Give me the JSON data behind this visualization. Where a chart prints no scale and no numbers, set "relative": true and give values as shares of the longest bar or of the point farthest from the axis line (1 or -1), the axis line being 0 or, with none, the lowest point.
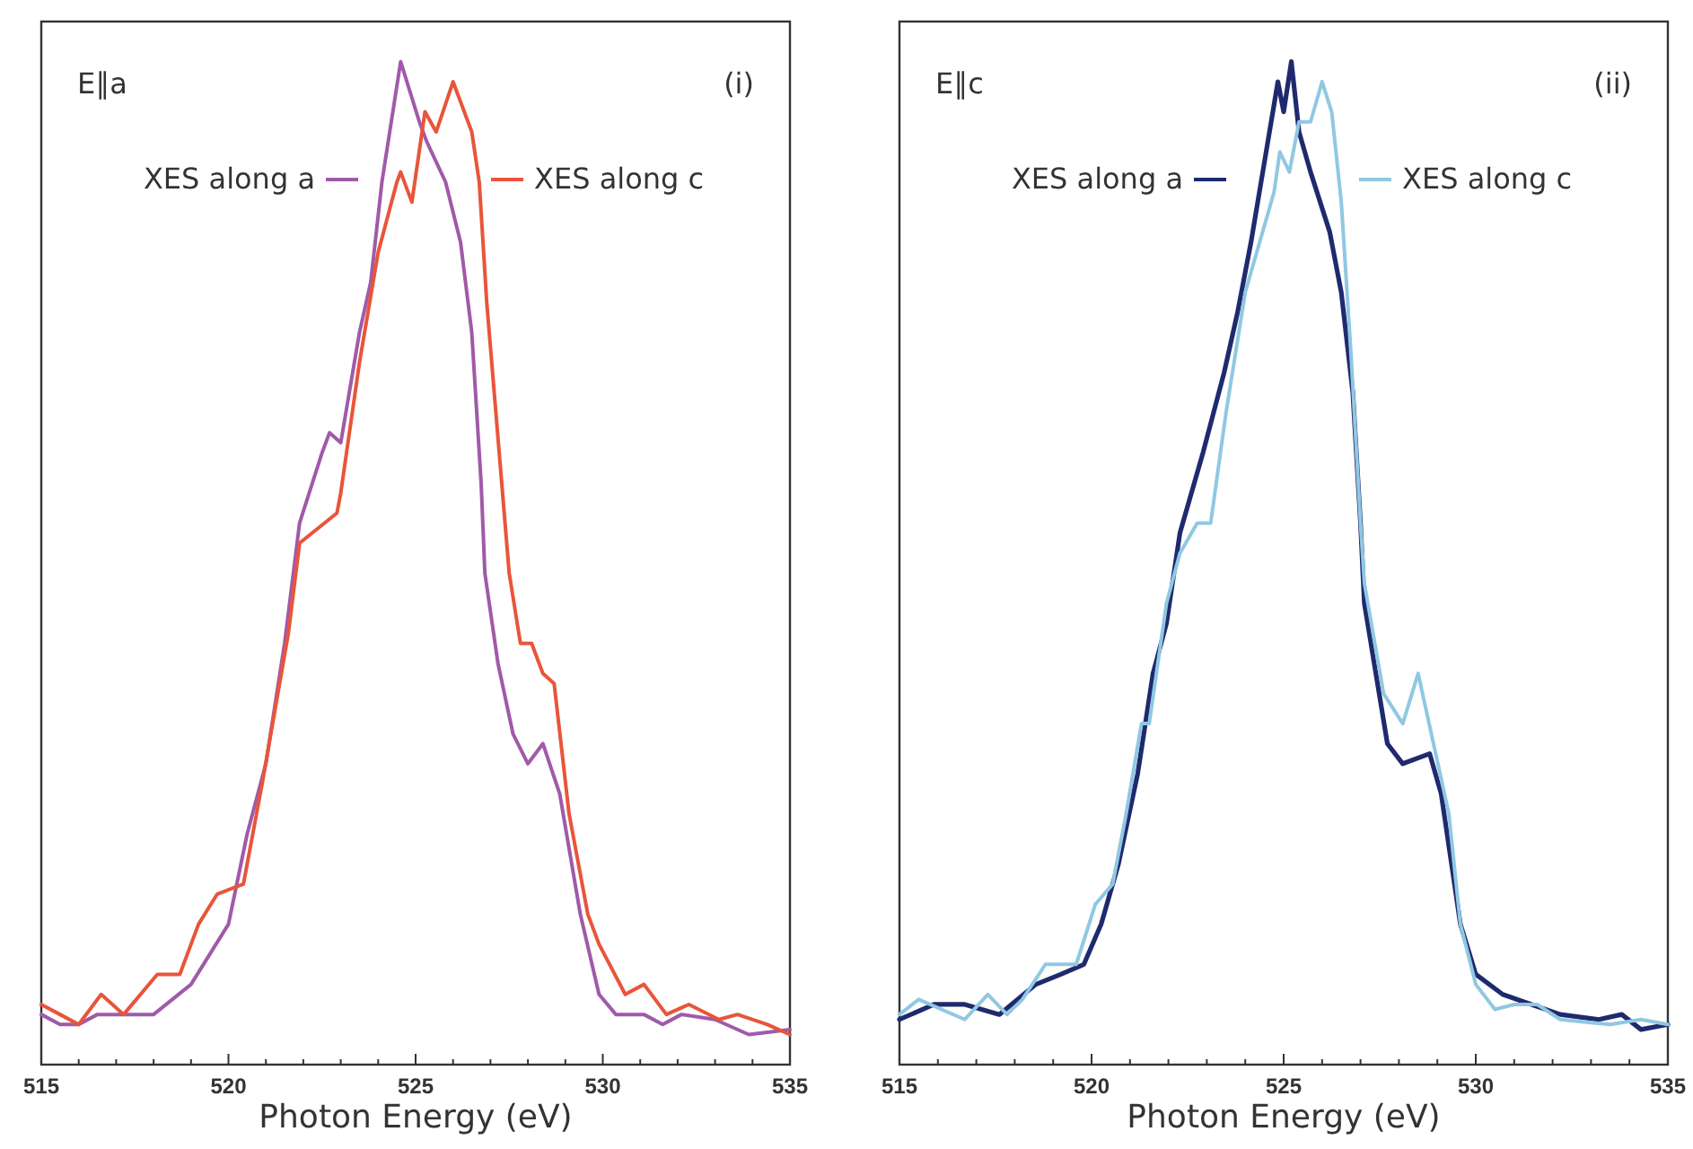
{
  "chart_data": [
    {
      "type": "line",
      "title": "E∥a",
      "annotations": [
        "(i)"
      ],
      "xlabel": "Photon Energy (eV)",
      "relative": true,
      "tick_labels": "x",
      "legend": "top",
      "xlim": [
        515,
        535
      ],
      "xticks": [
        515,
        {
          "value": 516,
          "label": null
        },
        {
          "value": 517,
          "label": null
        },
        {
          "value": 518,
          "label": null
        },
        {
          "value": 519,
          "label": null
        },
        520,
        {
          "value": 521,
          "label": null
        },
        {
          "value": 522,
          "label": null
        },
        {
          "value": 523,
          "label": null
        },
        {
          "value": 524,
          "label": null
        },
        525,
        {
          "value": 526,
          "label": null
        },
        {
          "value": 527,
          "label": null
        },
        {
          "value": 528,
          "label": null
        },
        {
          "value": 529,
          "label": null
        },
        530,
        {
          "value": 531,
          "label": null
        },
        {
          "value": 532,
          "label": null
        },
        {
          "value": 533,
          "label": null
        },
        {
          "value": 534,
          "label": null
        },
        535
      ],
      "series": [
        {
          "name": "XES along a",
          "color": "#a05aa8",
          "x": [
            515,
            515.5,
            516,
            516.5,
            517,
            518,
            519,
            520,
            520.5,
            521,
            521.5,
            521.9,
            522.5,
            522.7,
            523,
            523.5,
            523.8,
            524.1,
            524.6,
            525.1,
            525.3,
            525.8,
            526.2,
            526.5,
            526.75,
            526.85,
            527.2,
            527.6,
            528,
            528.4,
            528.85,
            529.4,
            529.9,
            530.35,
            531.1,
            531.6,
            532.1,
            533,
            533.9,
            535
          ],
          "values": [
            0.05,
            0.04,
            0.04,
            0.05,
            0.05,
            0.05,
            0.08,
            0.14,
            0.23,
            0.3,
            0.42,
            0.54,
            0.61,
            0.63,
            0.62,
            0.73,
            0.78,
            0.88,
            1,
            0.94,
            0.92,
            0.88,
            0.82,
            0.73,
            0.58,
            0.49,
            0.4,
            0.33,
            0.3,
            0.32,
            0.27,
            0.15,
            0.07,
            0.05,
            0.05,
            0.04,
            0.05,
            0.045,
            0.03,
            0.035
          ]
        },
        {
          "name": "XES along c",
          "color": "#e8553a",
          "x": [
            515,
            515.5,
            516,
            516.6,
            517.2,
            518.1,
            518.7,
            519.2,
            519.7,
            520.4,
            520.9,
            521.6,
            521.9,
            522.9,
            523,
            523.5,
            524,
            524.5,
            524.6,
            524.9,
            525.25,
            525.55,
            526,
            526.3,
            526.5,
            526.7,
            526.9,
            527.3,
            527.5,
            527.8,
            528.1,
            528.4,
            528.7,
            529.1,
            529.6,
            529.9,
            530.6,
            531.1,
            531.7,
            532.3,
            533.1,
            533.6,
            534.4,
            535
          ],
          "values": [
            0.06,
            0.05,
            0.04,
            0.07,
            0.05,
            0.09,
            0.09,
            0.14,
            0.17,
            0.18,
            0.28,
            0.43,
            0.52,
            0.55,
            0.57,
            0.7,
            0.81,
            0.88,
            0.89,
            0.86,
            0.95,
            0.93,
            0.98,
            0.95,
            0.93,
            0.88,
            0.76,
            0.58,
            0.49,
            0.42,
            0.42,
            0.39,
            0.38,
            0.25,
            0.15,
            0.12,
            0.07,
            0.08,
            0.05,
            0.06,
            0.045,
            0.05,
            0.04,
            0.03
          ]
        }
      ]
    },
    {
      "type": "line",
      "title": "E∥c",
      "annotations": [
        "(ii)"
      ],
      "xlabel": "Photon Energy (eV)",
      "relative": true,
      "tick_labels": "x",
      "legend": "top",
      "xlim": [
        515,
        535
      ],
      "xticks": [
        515,
        {
          "value": 516,
          "label": null
        },
        {
          "value": 517,
          "label": null
        },
        {
          "value": 518,
          "label": null
        },
        {
          "value": 519,
          "label": null
        },
        520,
        {
          "value": 521,
          "label": null
        },
        {
          "value": 522,
          "label": null
        },
        {
          "value": 523,
          "label": null
        },
        {
          "value": 524,
          "label": null
        },
        525,
        {
          "value": 526,
          "label": null
        },
        {
          "value": 527,
          "label": null
        },
        {
          "value": 528,
          "label": null
        },
        {
          "value": 529,
          "label": null
        },
        530,
        {
          "value": 531,
          "label": null
        },
        {
          "value": 532,
          "label": null
        },
        {
          "value": 533,
          "label": null
        },
        {
          "value": 534,
          "label": null
        },
        535
      ],
      "series": [
        {
          "name": "XES along a",
          "color": "#1f2a6e",
          "x": [
            515,
            515.9,
            516.7,
            517.6,
            518.55,
            519.2,
            519.8,
            520.25,
            520.7,
            521.2,
            521.6,
            521.95,
            522.3,
            522.9,
            523.45,
            523.8,
            524.15,
            524.5,
            524.85,
            525,
            525.2,
            525.4,
            525.7,
            526.2,
            526.5,
            526.8,
            527,
            527.1,
            527.7,
            528.1,
            528.8,
            529.1,
            529.6,
            530,
            530.7,
            531.45,
            532.2,
            533.2,
            533.8,
            534.3,
            535
          ],
          "values": [
            0.045,
            0.06,
            0.06,
            0.05,
            0.08,
            0.09,
            0.1,
            0.14,
            0.2,
            0.29,
            0.39,
            0.44,
            0.53,
            0.61,
            0.69,
            0.75,
            0.82,
            0.9,
            0.98,
            0.95,
            1,
            0.93,
            0.89,
            0.83,
            0.77,
            0.67,
            0.54,
            0.46,
            0.32,
            0.3,
            0.31,
            0.27,
            0.14,
            0.09,
            0.07,
            0.06,
            0.05,
            0.045,
            0.05,
            0.035,
            0.04
          ]
        },
        {
          "name": "XES along c",
          "color": "#90c8e2",
          "x": [
            515,
            515.5,
            516.7,
            517.3,
            517.8,
            518.2,
            518.8,
            519.6,
            520.1,
            520.55,
            520.9,
            521.3,
            521.5,
            521.95,
            522.3,
            522.75,
            523.1,
            523.5,
            524,
            524.3,
            524.75,
            524.9,
            525.15,
            525.4,
            525.7,
            526,
            526.25,
            526.5,
            526.75,
            527,
            527.1,
            527.6,
            528.1,
            528.5,
            528.9,
            529.3,
            529.6,
            530,
            530.5,
            531,
            531.6,
            532.2,
            533.5,
            534.3,
            535
          ],
          "values": [
            0.05,
            0.065,
            0.045,
            0.07,
            0.05,
            0.065,
            0.1,
            0.1,
            0.16,
            0.18,
            0.25,
            0.34,
            0.34,
            0.46,
            0.51,
            0.54,
            0.54,
            0.65,
            0.77,
            0.81,
            0.87,
            0.91,
            0.89,
            0.94,
            0.94,
            0.98,
            0.95,
            0.86,
            0.71,
            0.54,
            0.48,
            0.37,
            0.34,
            0.39,
            0.32,
            0.25,
            0.14,
            0.08,
            0.055,
            0.06,
            0.06,
            0.045,
            0.04,
            0.045,
            0.04
          ]
        }
      ]
    }
  ]
}
